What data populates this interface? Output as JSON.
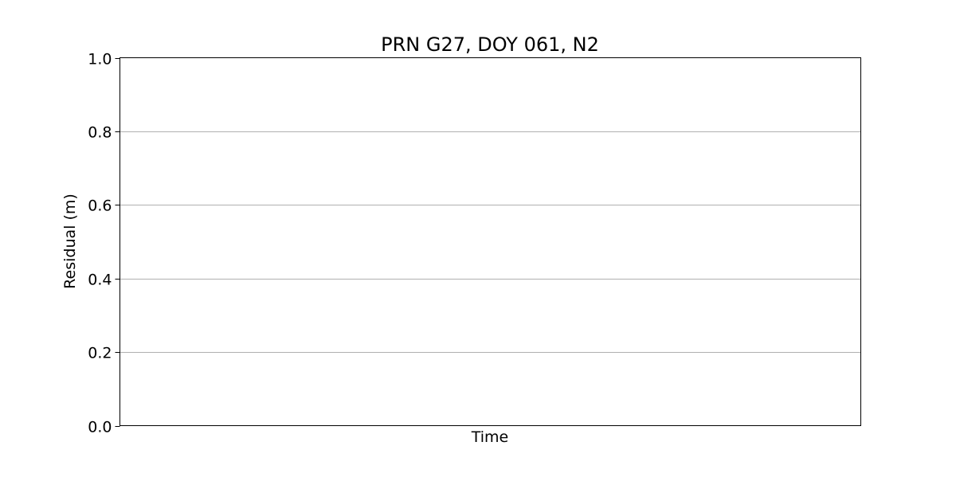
{
  "chart_data": {
    "type": "line",
    "title": "PRN G27, DOY 061, N2",
    "xlabel": "Time",
    "ylabel": "Residual (m)",
    "ylim": [
      0.0,
      1.0
    ],
    "y_ticks": [
      "0.0",
      "0.2",
      "0.4",
      "0.6",
      "0.8",
      "1.0"
    ],
    "x_ticks": [],
    "grid": "y-axis only",
    "legend": "none",
    "series": []
  },
  "colors": {
    "grid": "#b0b0b0",
    "frame": "#000000",
    "background": "#ffffff"
  }
}
